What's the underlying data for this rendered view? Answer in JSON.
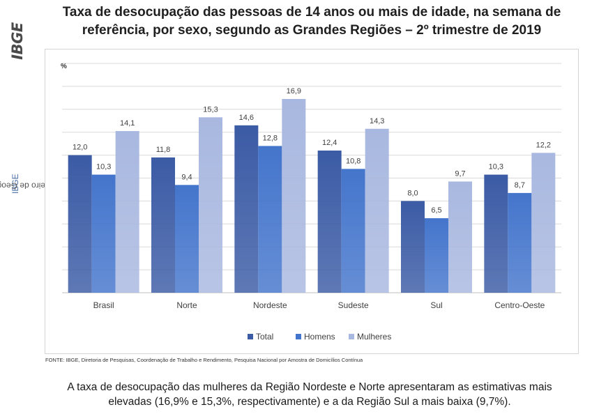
{
  "header": {
    "title_line1": "Taxa de desocupação das pessoas de 14 anos ou mais de idade, na semana de",
    "title_line2": "referência, por sexo, segundo as Grandes Regiões – 2º trimestre de 2019"
  },
  "sidebar": {
    "logo": "IBGE",
    "institute": "Instituto Brasileiro de Geografia e Estatística",
    "acronym": "IBGE"
  },
  "chart_data": {
    "type": "bar",
    "title": "",
    "ylabel": "%",
    "xlabel": "",
    "ylim": [
      0,
      20
    ],
    "grid": true,
    "legend_position": "bottom",
    "categories": [
      "Brasil",
      "Norte",
      "Nordeste",
      "Sudeste",
      "Sul",
      "Centro-Oeste"
    ],
    "series": [
      {
        "name": "Total",
        "values": [
          12.0,
          11.8,
          14.6,
          12.4,
          8.0,
          10.3
        ],
        "labels": [
          "12,0",
          "11,8",
          "14,6",
          "12,4",
          "8,0",
          "10,3"
        ],
        "color": "#3b5ba5"
      },
      {
        "name": "Homens",
        "values": [
          10.3,
          9.4,
          12.8,
          10.8,
          6.5,
          8.7
        ],
        "labels": [
          "10,3",
          "9,4",
          "12,8",
          "10,8",
          "6,5",
          "8,7"
        ],
        "color": "#4475cc"
      },
      {
        "name": "Mulheres",
        "values": [
          14.1,
          15.3,
          16.9,
          14.3,
          9.7,
          12.2
        ],
        "labels": [
          "14,1",
          "15,3",
          "16,9",
          "14,3",
          "9,7",
          "12,2"
        ],
        "color": "#a9b8e0"
      }
    ]
  },
  "source": "FONTE: IBGE, Diretoria de Pesquisas, Coordenação de Trabalho e Rendimento, Pesquisa Nacional por Amostra de Domicílios Contínua",
  "caption": {
    "line1": "A taxa de desocupação das mulheres da Região Nordeste e Norte apresentaram as estimativas mais",
    "line2": "elevadas (16,9% e 15,3%, respectivamente) e a da Região Sul a mais baixa (9,7%)."
  }
}
